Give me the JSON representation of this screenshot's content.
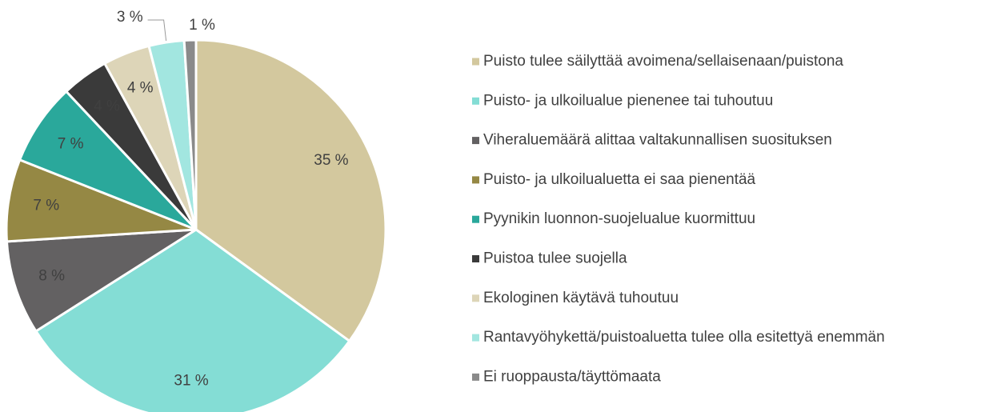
{
  "chart_data": {
    "type": "pie",
    "categories": [
      "Puisto tulee säilyttää avoimena/sellaisenaan/puistona",
      "Puisto- ja ulkoilualue pienenee tai tuhoutuu",
      "Viheraluemäärä alittaa valtakunnallisen suosituksen",
      "Puisto- ja ulkoilualuetta ei saa pienentää",
      "Pyynikin luonnon-suojelualue kuormittuu",
      "Puistoa tulee suojella",
      "Ekologinen käytävä tuhoutuu",
      "Rantavyöhykettä/puistoaluetta tulee olla esitettyä enemmän",
      "Ei ruoppausta/täyttömaata"
    ],
    "values": [
      35,
      31,
      8,
      7,
      7,
      4,
      4,
      3,
      1
    ],
    "value_labels": [
      "35 %",
      "31 %",
      "8 %",
      "7 %",
      "7 %",
      "4 %",
      "4 %",
      "3 %",
      "1 %"
    ],
    "colors": [
      "#d3c89e",
      "#84ddd5",
      "#636162",
      "#958844",
      "#2aa89b",
      "#3a3a3a",
      "#ddd5b8",
      "#a2e6e0",
      "#8a8a8a"
    ],
    "legend": "right"
  }
}
